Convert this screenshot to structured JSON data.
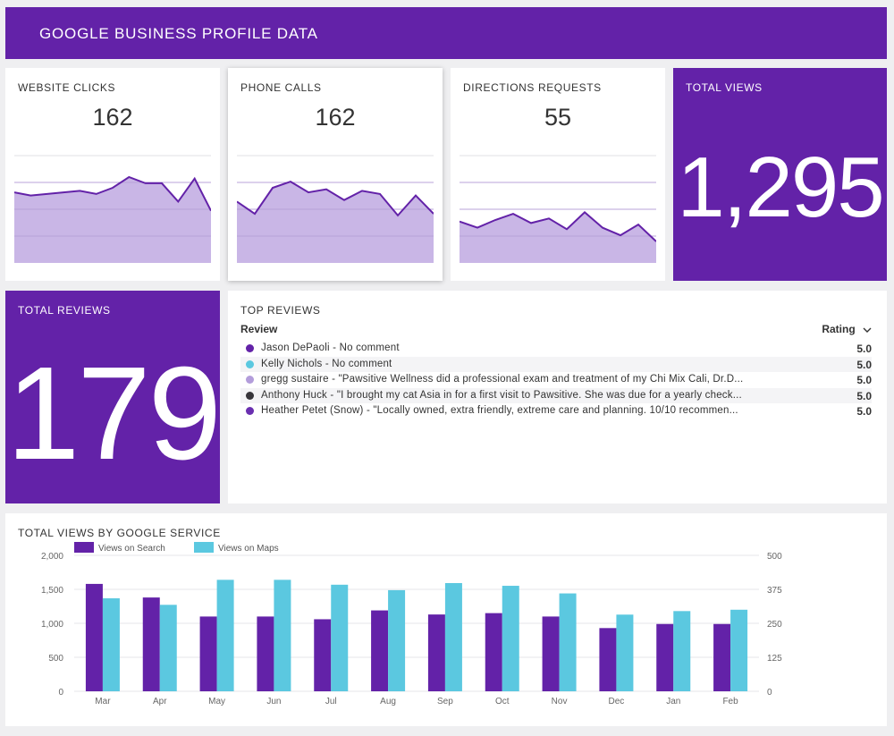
{
  "header": {
    "title": "GOOGLE BUSINESS PROFILE DATA"
  },
  "colors": {
    "brand": "#6322a8",
    "area_fill": "#c9b6e6",
    "area_line": "#6322a8",
    "search": "#6322a8",
    "maps": "#5bc8e0"
  },
  "kpis": {
    "website_clicks": {
      "title": "WEBSITE CLICKS",
      "value": "162",
      "trend": [
        176,
        174,
        175,
        176,
        177,
        175,
        179,
        186,
        182,
        182,
        170,
        185,
        164
      ]
    },
    "phone_calls": {
      "title": "PHONE CALLS",
      "value": "162",
      "trend": [
        170,
        162,
        179,
        183,
        176,
        178,
        171,
        177,
        175,
        161,
        174,
        162
      ]
    },
    "directions_requests": {
      "title": "DIRECTIONS REQUESTS",
      "value": "55",
      "trend": [
        157,
        153,
        158,
        162,
        156,
        159,
        152,
        163,
        153,
        148,
        155,
        144
      ]
    },
    "total_views": {
      "title": "TOTAL VIEWS",
      "value": "1,295"
    }
  },
  "total_reviews": {
    "title": "TOTAL REVIEWS",
    "value": "179"
  },
  "top_reviews": {
    "title": "TOP REVIEWS",
    "col_review": "Review",
    "col_rating": "Rating",
    "rows": [
      {
        "text": "Jason DePaoli - No comment",
        "rating": "5.0",
        "color": "#6322a8"
      },
      {
        "text": "Kelly Nichols - No comment",
        "rating": "5.0",
        "color": "#5bc8e0"
      },
      {
        "text": "gregg sustaire - \"Pawsitive Wellness did a professional exam and treatment of my Chi Mix Cali, Dr.D...",
        "rating": "5.0",
        "color": "#b39ddb"
      },
      {
        "text": "Anthony Huck - \"I brought my cat Asia in for a first visit to Pawsitive. She was due for a yearly check...",
        "rating": "5.0",
        "color": "#37353a"
      },
      {
        "text": "Heather Petet (Snow) - \"Locally owned, extra friendly, extreme care and planning. 10/10 recommen...",
        "rating": "5.0",
        "color": "#6a2fb0"
      }
    ]
  },
  "chart_data": {
    "type": "bar",
    "title": "TOTAL VIEWS BY GOOGLE SERVICE",
    "categories": [
      "Mar",
      "Apr",
      "May",
      "Jun",
      "Jul",
      "Aug",
      "Sep",
      "Oct",
      "Nov",
      "Dec",
      "Jan",
      "Feb"
    ],
    "series": [
      {
        "name": "Views on Search",
        "axis": "left",
        "values": [
          1580,
          1380,
          1100,
          1100,
          1060,
          1190,
          1130,
          1150,
          1100,
          930,
          990,
          990
        ]
      },
      {
        "name": "Views on Maps",
        "axis": "right",
        "values": [
          342,
          318,
          410,
          410,
          392,
          372,
          398,
          388,
          360,
          282,
          295,
          300
        ]
      }
    ],
    "left_axis": {
      "min": 0,
      "max": 2000,
      "ticks": [
        "0",
        "500",
        "1,000",
        "1,500",
        "2,000"
      ]
    },
    "right_axis": {
      "min": 0,
      "max": 500,
      "ticks": [
        "0",
        "125",
        "250",
        "375",
        "500"
      ]
    },
    "legend": "top-left"
  }
}
